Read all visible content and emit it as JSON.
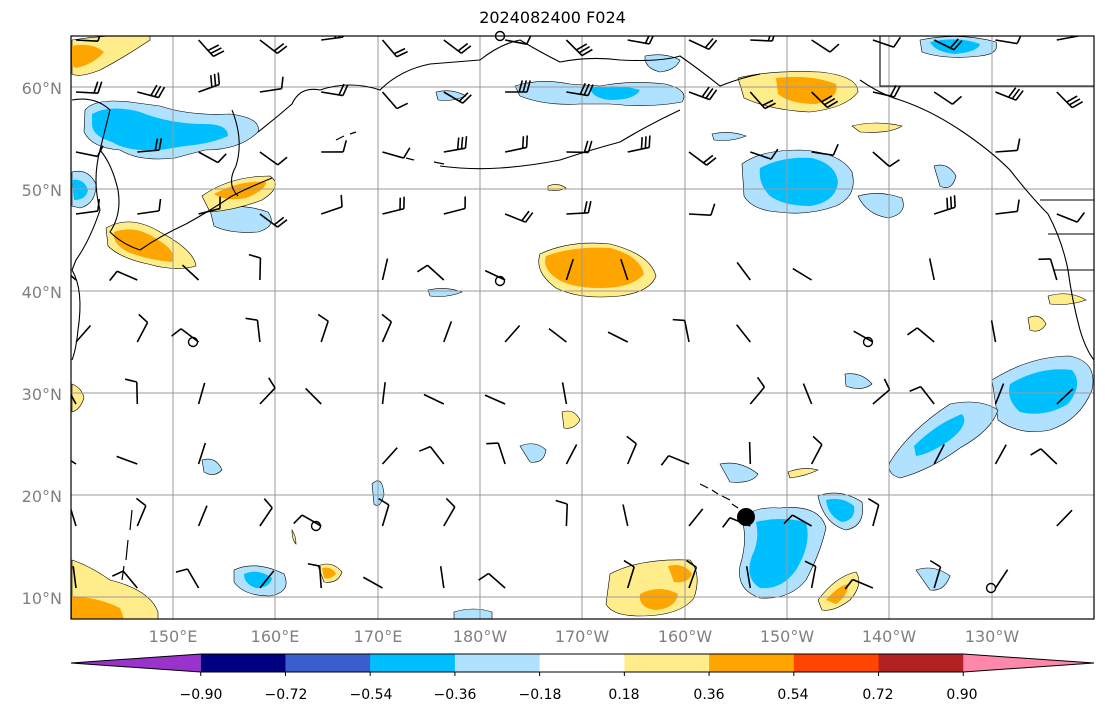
{
  "title": "2024082400 F024",
  "map": {
    "lat_labels": [
      "60°N",
      "50°N",
      "40°N",
      "30°N",
      "20°N",
      "10°N"
    ],
    "lon_labels": [
      "150°E",
      "160°E",
      "170°E",
      "180°W",
      "170°W",
      "160°W",
      "150°W",
      "140°W",
      "130°W"
    ],
    "grid": true
  },
  "colorbar": {
    "labels": [
      "−0.90",
      "−0.72",
      "−0.54",
      "−0.36",
      "−0.18",
      "0.18",
      "0.36",
      "0.54",
      "0.72",
      "0.90"
    ],
    "colors": [
      "#9933cc",
      "#000080",
      "#3a5fcd",
      "#00bfff",
      "#b0e2ff",
      "#ffffff",
      "#ffec8b",
      "#ffa500",
      "#ff4500",
      "#b22222",
      "#ff88aa"
    ]
  },
  "station_marker": {
    "lat": 18,
    "lon": -154
  }
}
